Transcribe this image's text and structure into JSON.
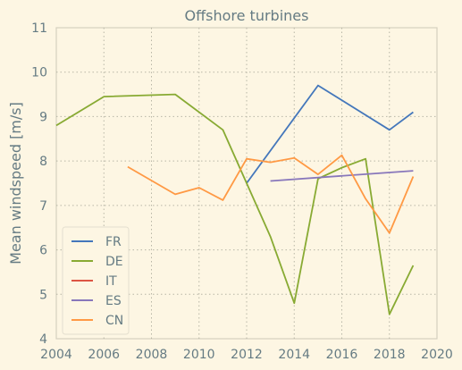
{
  "chart_data": {
    "type": "line",
    "title": "Offshore turbines",
    "xlabel": "",
    "ylabel": "Mean windspeed [m/s]",
    "xlim": [
      2004,
      2020
    ],
    "ylim": [
      4,
      11
    ],
    "xticks": [
      2004,
      2006,
      2008,
      2010,
      2012,
      2014,
      2016,
      2018,
      2020
    ],
    "yticks": [
      4,
      5,
      6,
      7,
      8,
      9,
      10,
      11
    ],
    "grid": true,
    "legend_position": "lower-left",
    "series": [
      {
        "name": "FR",
        "color": "#4477bb",
        "x": [
          2012,
          2015,
          2018,
          2019
        ],
        "y": [
          7.5,
          9.7,
          8.7,
          9.1
        ]
      },
      {
        "name": "DE",
        "color": "#88aa33",
        "x": [
          2004,
          2006,
          2009,
          2011,
          2012,
          2013,
          2014,
          2015,
          2016,
          2017,
          2018,
          2019
        ],
        "y": [
          8.8,
          9.45,
          9.5,
          8.7,
          7.5,
          6.3,
          4.8,
          7.6,
          7.85,
          8.05,
          4.55,
          5.65
        ]
      },
      {
        "name": "IT",
        "color": "#dd5544",
        "x": [],
        "y": []
      },
      {
        "name": "ES",
        "color": "#8877bb",
        "x": [
          2013,
          2019
        ],
        "y": [
          7.55,
          7.78
        ]
      },
      {
        "name": "CN",
        "color": "#ff9944",
        "x": [
          2007,
          2009,
          2010,
          2011,
          2012,
          2013,
          2014,
          2015,
          2016,
          2017,
          2018,
          2019
        ],
        "y": [
          7.87,
          7.25,
          7.4,
          7.12,
          8.05,
          7.97,
          8.07,
          7.7,
          8.13,
          7.15,
          6.38,
          7.65
        ]
      }
    ]
  }
}
